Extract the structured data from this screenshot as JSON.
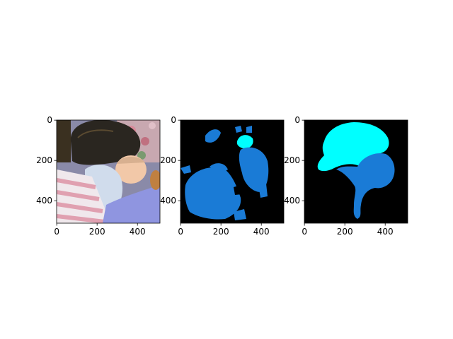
{
  "figure": {
    "panels": [
      {
        "id": "photo",
        "content": "photograph",
        "xticks": [
          "0",
          "200",
          "400"
        ],
        "yticks": [
          "0",
          "200",
          "400"
        ]
      },
      {
        "id": "prediction-mask",
        "content": "segmentation mask",
        "xticks": [
          "0",
          "200",
          "400"
        ],
        "yticks": [
          "0",
          "200",
          "400"
        ]
      },
      {
        "id": "ground-truth-mask",
        "content": "segmentation mask",
        "xticks": [
          "0",
          "200",
          "400"
        ],
        "yticks": [
          "0",
          "200",
          "400"
        ]
      }
    ],
    "colors": {
      "background": "#000000",
      "person": "#1a7bd6",
      "cat": "#00ffff",
      "blanket_pink": "#e8b4bc",
      "sheet_blue": "#8f95e0"
    }
  }
}
